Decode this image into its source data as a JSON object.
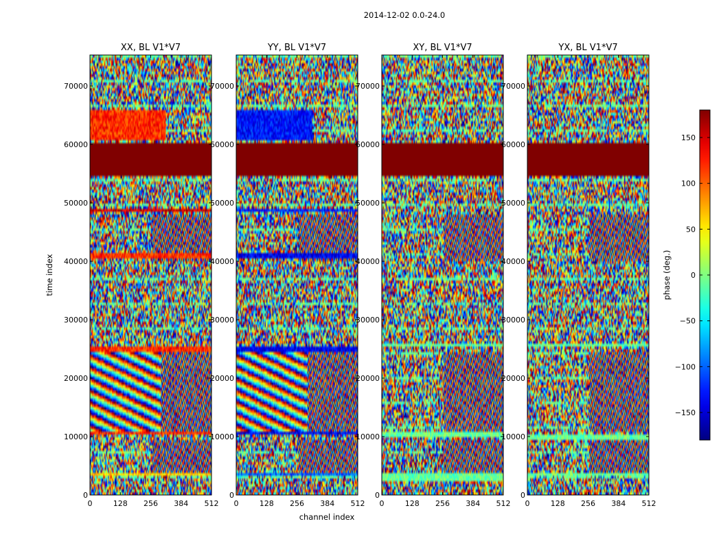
{
  "suptitle": "2014-12-02 0.0-24.0",
  "xlabel": "channel index",
  "ylabel": "time index",
  "colorbar_label": "phase (deg.)",
  "chart_data": {
    "type": "heatmap",
    "colormap": "jet",
    "x_range": [
      0,
      512
    ],
    "y_range": [
      0,
      75300
    ],
    "xticks": [
      0,
      128,
      256,
      384,
      512
    ],
    "yticks": [
      0,
      10000,
      20000,
      30000,
      40000,
      50000,
      60000,
      70000
    ],
    "color_range": [
      -180,
      180
    ],
    "colorbar_ticks": [
      150,
      100,
      50,
      0,
      -50,
      -100,
      -150
    ],
    "colorbar_tick_labels": [
      "150",
      "100",
      "50",
      "0",
      "−50",
      "−100",
      "−150"
    ],
    "panels": [
      {
        "title": "XX, BL V1*V7",
        "bands": [
          {
            "y": [
              54800,
              60300
            ],
            "phase": 180
          },
          {
            "y": [
              60700,
              65800
            ],
            "x": [
              0,
              320
            ],
            "phase": 120
          },
          {
            "y": [
              40700,
              41200
            ],
            "phase": 120
          },
          {
            "y": [
              24600,
              25200
            ],
            "phase": 120
          },
          {
            "y": [
              10200,
              11000
            ],
            "phase": 120
          },
          {
            "y": [
              48700,
              49000
            ],
            "phase": 150
          },
          {
            "y": [
              3300,
              3800
            ],
            "phase": 60
          }
        ],
        "fringes": true
      },
      {
        "title": "YY, BL V1*V7",
        "bands": [
          {
            "y": [
              54800,
              60300
            ],
            "phase": 180
          },
          {
            "y": [
              60700,
              65800
            ],
            "x": [
              0,
              320
            ],
            "phase": -130
          },
          {
            "y": [
              40700,
              41200
            ],
            "phase": -140
          },
          {
            "y": [
              24600,
              25200
            ],
            "phase": -140
          },
          {
            "y": [
              10200,
              11000
            ],
            "phase": -140
          },
          {
            "y": [
              48700,
              49000
            ],
            "phase": -120
          },
          {
            "y": [
              3300,
              3800
            ],
            "phase": -100
          }
        ],
        "fringes": true
      },
      {
        "title": "XY, BL V1*V7",
        "bands": [
          {
            "y": [
              54800,
              60300
            ],
            "phase": 180
          },
          {
            "y": [
              25200,
              26000
            ],
            "phase": -10
          },
          {
            "y": [
              10000,
              10800
            ],
            "phase": -10
          },
          {
            "y": [
              2500,
              3600
            ],
            "phase": -10
          }
        ],
        "fringes": false
      },
      {
        "title": "YX, BL V1*V7",
        "bands": [
          {
            "y": [
              54800,
              60300
            ],
            "phase": 180
          },
          {
            "y": [
              25200,
              25800
            ],
            "phase": -10
          },
          {
            "y": [
              9600,
              10200
            ],
            "phase": -10
          },
          {
            "y": [
              3200,
              3600
            ],
            "phase": -10
          }
        ],
        "fringes": false
      }
    ]
  }
}
